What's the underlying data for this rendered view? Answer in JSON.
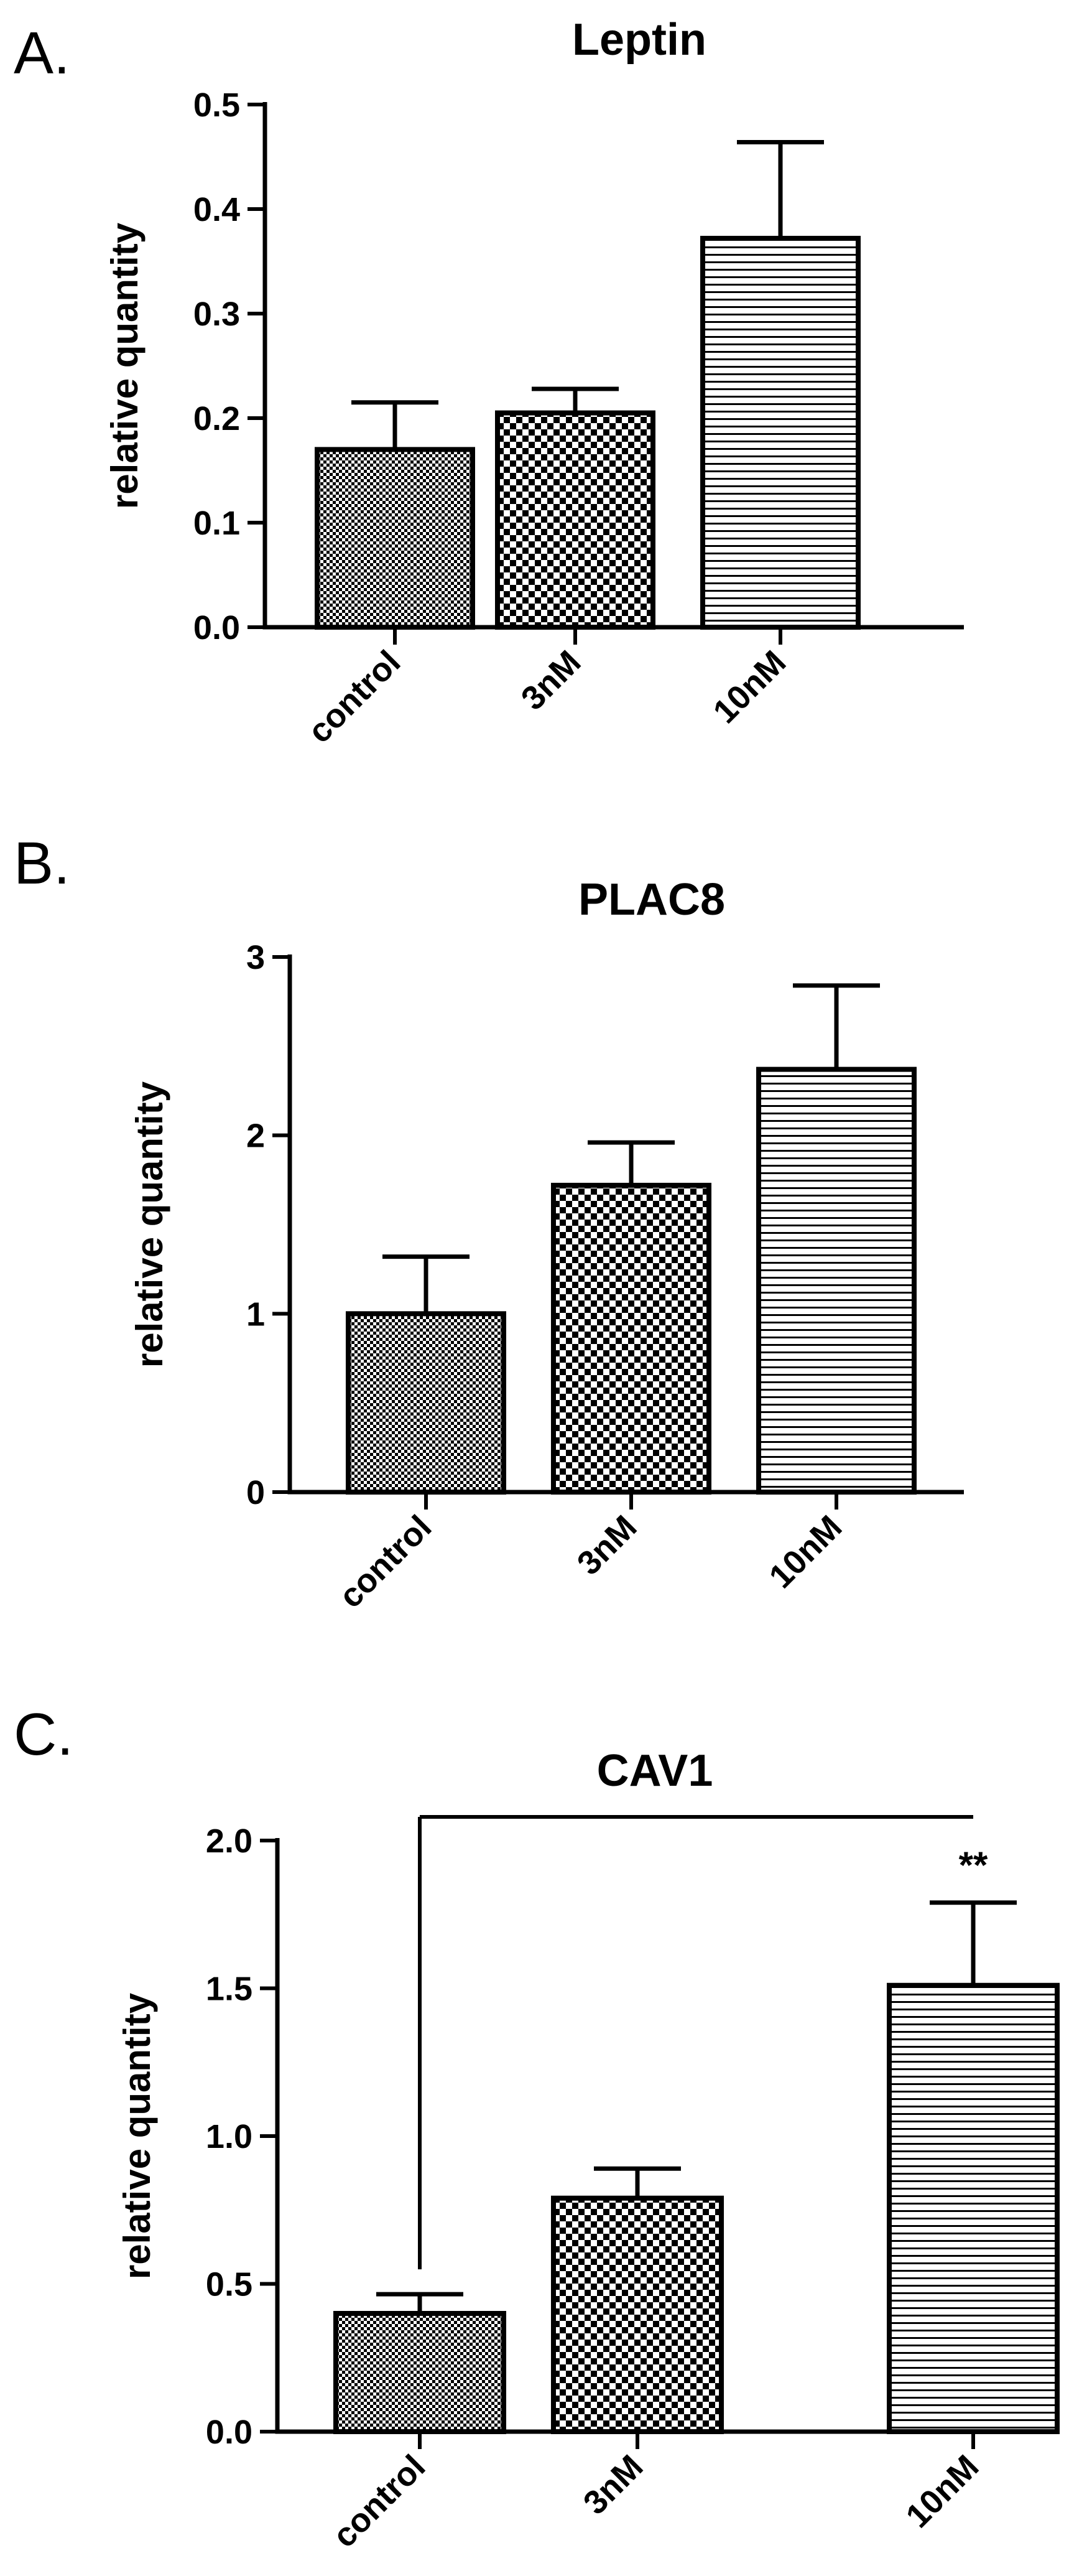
{
  "figure": {
    "panels": [
      "A.",
      "B.",
      "C."
    ]
  },
  "chart_data": [
    {
      "type": "bar",
      "title": "Leptin",
      "xlabel": "",
      "ylabel": "relative quantity",
      "categories": [
        "control",
        "3nM",
        "10nM"
      ],
      "values": [
        0.17,
        0.205,
        0.372
      ],
      "errors": [
        0.045,
        0.023,
        0.092
      ],
      "ylim": [
        0,
        0.5
      ],
      "yticks": [
        0.0,
        0.1,
        0.2,
        0.3,
        0.4,
        0.5
      ],
      "ytick_labels": [
        "0.0",
        "0.1",
        "0.2",
        "0.3",
        "0.4",
        "0.5"
      ],
      "patterns": [
        "fine-checker",
        "checker",
        "horizontal-lines"
      ],
      "grid": false
    },
    {
      "type": "bar",
      "title": "PLAC8",
      "xlabel": "",
      "ylabel": "relative quantity",
      "categories": [
        "control",
        "3nM",
        "10nM"
      ],
      "values": [
        1.0,
        1.72,
        2.37
      ],
      "errors": [
        0.32,
        0.24,
        0.47
      ],
      "ylim": [
        0,
        3
      ],
      "yticks": [
        0,
        1,
        2,
        3
      ],
      "ytick_labels": [
        "0",
        "1",
        "2",
        "3"
      ],
      "patterns": [
        "fine-checker",
        "checker",
        "horizontal-lines"
      ],
      "grid": false
    },
    {
      "type": "bar",
      "title": "CAV1",
      "xlabel": "",
      "ylabel": "relative quantity",
      "categories": [
        "control",
        "3nM",
        "10nM"
      ],
      "values": [
        0.4,
        0.79,
        1.51
      ],
      "errors": [
        0.065,
        0.1,
        0.28
      ],
      "ylim": [
        0,
        2.0
      ],
      "yticks": [
        0.0,
        0.5,
        1.0,
        1.5,
        2.0
      ],
      "ytick_labels": [
        "0.0",
        "0.5",
        "1.0",
        "1.5",
        "2.0"
      ],
      "patterns": [
        "fine-checker",
        "checker",
        "horizontal-lines"
      ],
      "grid": false,
      "annotations": [
        {
          "text": "**",
          "category": "10nM"
        }
      ],
      "significance": {
        "from": "control",
        "to": "10nM",
        "level": 2.08
      }
    }
  ]
}
